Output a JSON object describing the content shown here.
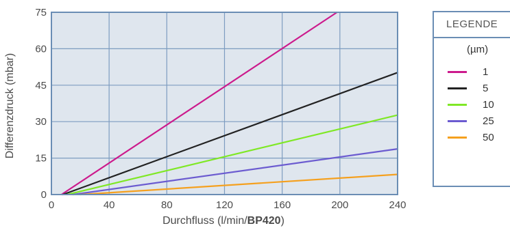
{
  "chart_data": {
    "type": "line",
    "xlabel_main": "Durchfluss (l/min/",
    "xlabel_bold": "BP420",
    "xlabel_end": ")",
    "ylabel": "Differenzdruck (mbar)",
    "xlim": [
      0,
      240
    ],
    "ylim": [
      0,
      75
    ],
    "xticks": [
      "0",
      "40",
      "80",
      "120",
      "160",
      "200",
      "240"
    ],
    "yticks": [
      "0",
      "15",
      "30",
      "45",
      "60",
      "75"
    ],
    "grid": true,
    "legend_title": "LEGENDE",
    "legend_unit": "(µm)",
    "legend_position": "right",
    "series": [
      {
        "name": "1",
        "color": "#cc1a8c",
        "x": [
          7,
          198
        ],
        "y": [
          0,
          75
        ]
      },
      {
        "name": "5",
        "color": "#222222",
        "x": [
          8,
          240
        ],
        "y": [
          0,
          50.2
        ]
      },
      {
        "name": "10",
        "color": "#7fe825",
        "x": [
          11,
          240
        ],
        "y": [
          0,
          32.7
        ]
      },
      {
        "name": "25",
        "color": "#6b5bd0",
        "x": [
          15,
          240
        ],
        "y": [
          0,
          18.8
        ]
      },
      {
        "name": "50",
        "color": "#f5a01e",
        "x": [
          20,
          240
        ],
        "y": [
          0,
          8.3
        ]
      }
    ]
  },
  "colors": {
    "plot_bg": "#dfe6ee",
    "grid": "#7d9cc0",
    "frame": "#6a8db4"
  }
}
